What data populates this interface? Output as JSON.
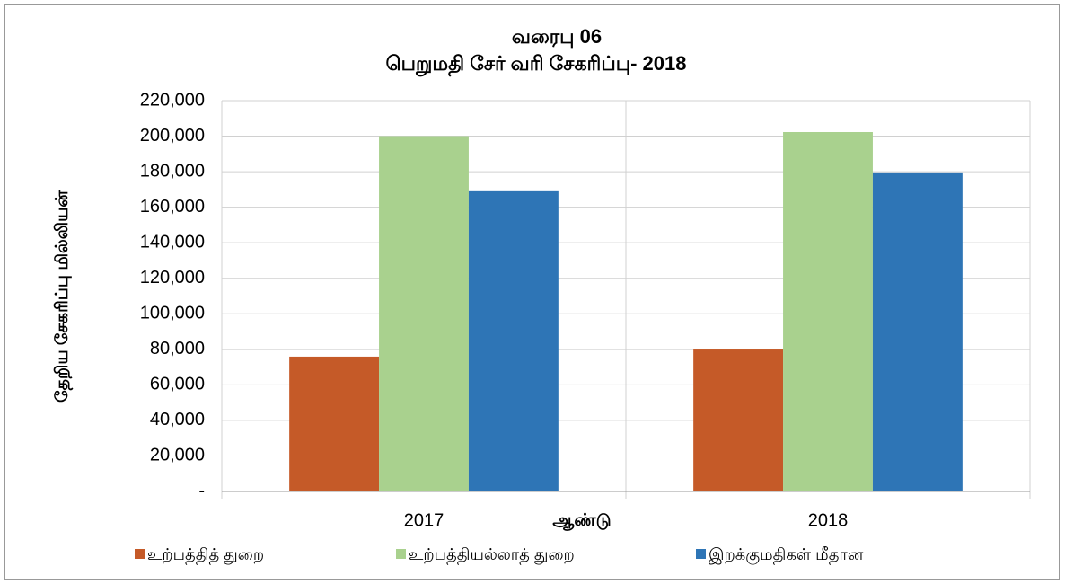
{
  "chart_data": {
    "type": "bar",
    "title": [
      "வரைபு 06",
      "பெறுமதி சேர் வரி சேகரிப்பு- 2018"
    ],
    "y_label": "தேறிய சேகரிப்பு மில்லியன்",
    "x_label": "ஆண்டு",
    "categories": [
      "2017",
      "2018"
    ],
    "series": [
      {
        "name": "உற்பத்தித் துறை",
        "color": "#c55a28",
        "values": [
          75900,
          80400
        ]
      },
      {
        "name": "உற்பத்தியல்லாத் துறை",
        "color": "#a9d18e",
        "values": [
          200000,
          202300
        ]
      },
      {
        "name": "இறக்குமதிகள் மீதான",
        "color": "#2e75b6",
        "values": [
          169000,
          179600
        ]
      }
    ],
    "ylim": [
      0,
      220000
    ],
    "yticks": [
      {
        "value": 0,
        "label": "-"
      },
      {
        "value": 20000,
        "label": "20,000"
      },
      {
        "value": 40000,
        "label": "40,000"
      },
      {
        "value": 60000,
        "label": "60,000"
      },
      {
        "value": 80000,
        "label": "80,000"
      },
      {
        "value": 100000,
        "label": "100,000"
      },
      {
        "value": 120000,
        "label": "120,000"
      },
      {
        "value": 140000,
        "label": "140,000"
      },
      {
        "value": 160000,
        "label": "160,000"
      },
      {
        "value": 180000,
        "label": "180,000"
      },
      {
        "value": 200000,
        "label": "200,000"
      },
      {
        "value": 220000,
        "label": "220,000"
      }
    ],
    "grid": true,
    "legend": "bottom"
  }
}
